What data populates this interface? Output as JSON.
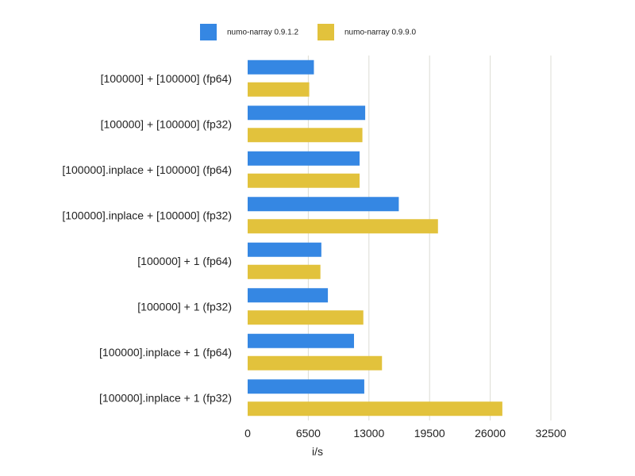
{
  "chart_data": {
    "type": "bar",
    "orientation": "horizontal",
    "categories": [
      "[100000] + [100000] (fp64)",
      "[100000] + [100000] (fp32)",
      "[100000].inplace + [100000] (fp64)",
      "[100000].inplace + [100000] (fp32)",
      "[100000] + 1 (fp64)",
      "[100000] + 1 (fp32)",
      "[100000].inplace + 1 (fp64)",
      "[100000].inplace + 1 (fp32)"
    ],
    "series": [
      {
        "name": "numo-narray 0.9.1.2",
        "color": "#3587e3",
        "values": [
          7100,
          12600,
          12000,
          16200,
          7900,
          8600,
          11400,
          12500
        ]
      },
      {
        "name": "numo-narray 0.9.9.0",
        "color": "#e2c23c",
        "values": [
          6600,
          12300,
          12000,
          20400,
          7800,
          12400,
          14400,
          27300
        ]
      }
    ],
    "xlabel": "i/s",
    "ylabel": "",
    "xlim": [
      0,
      32500
    ],
    "ticks": [
      "0",
      "6500",
      "13000",
      "19500",
      "26000",
      "32500"
    ],
    "tick_values": [
      0,
      6500,
      13000,
      19500,
      26000,
      32500
    ],
    "grid": true,
    "grid_color": "#dcdcd4",
    "legend_position": "top-center"
  }
}
